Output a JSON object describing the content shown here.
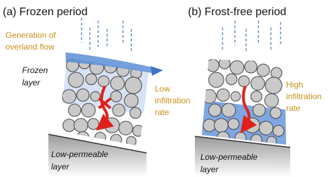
{
  "panels": [
    {
      "title": "(a) Frozen period",
      "overland_flow": [
        "Generation of",
        "overland flow"
      ],
      "frozen_layer": [
        "Frozen",
        "layer"
      ],
      "infiltration": [
        "Low",
        "infiltration",
        "rate"
      ],
      "base_layer": [
        "Low-permeable",
        "layer"
      ]
    },
    {
      "title": "(b) Frost-free period",
      "infiltration": [
        "High",
        "infiltration",
        "rate"
      ],
      "base_layer": [
        "Low-permeable",
        "layer"
      ]
    }
  ]
}
